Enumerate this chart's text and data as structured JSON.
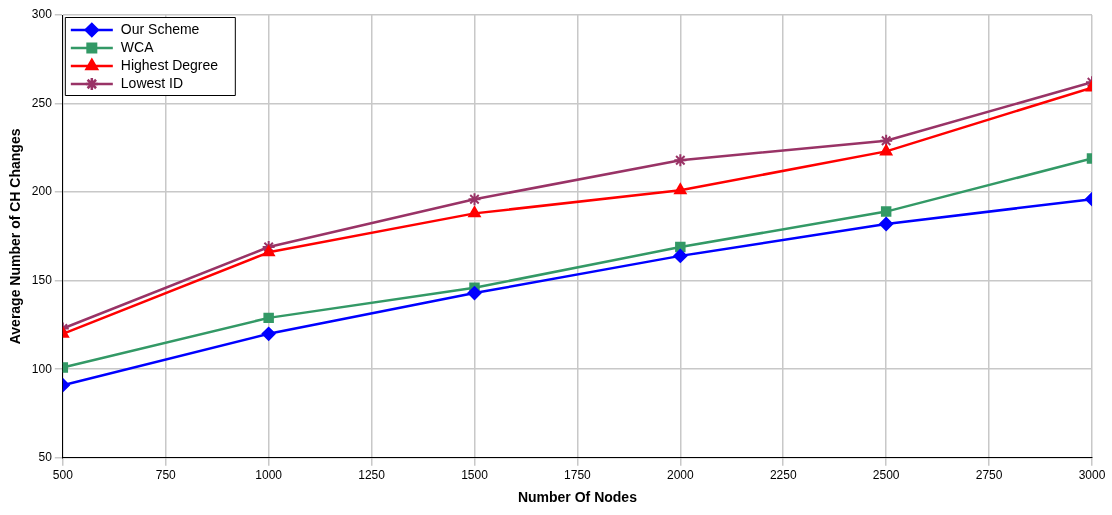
{
  "chart_data": {
    "type": "line",
    "xlabel": "Number Of Nodes",
    "ylabel": "Average Number of CH Changes",
    "x": [
      500,
      1000,
      1500,
      2000,
      2500,
      3000
    ],
    "xlim": [
      500,
      3000
    ],
    "xticks": [
      500,
      750,
      1000,
      1250,
      1500,
      1750,
      2000,
      2250,
      2500,
      2750,
      3000
    ],
    "ylim": [
      50,
      300
    ],
    "yticks": [
      50,
      100,
      150,
      200,
      250,
      300
    ],
    "grid": true,
    "legend": "top left",
    "line_style": "solid",
    "series": [
      {
        "name": "Our Scheme",
        "color": "#0000ff",
        "marker": "diamond",
        "values": [
          91,
          120,
          143,
          164,
          182,
          196
        ]
      },
      {
        "name": "WCA",
        "color": "#339966",
        "marker": "square",
        "values": [
          101,
          129,
          146,
          169,
          189,
          219
        ]
      },
      {
        "name": "Highest Degree",
        "color": "#ff0000",
        "marker": "triangle",
        "values": [
          120,
          166,
          188,
          201,
          223,
          259
        ]
      },
      {
        "name": "Lowest ID",
        "color": "#993366",
        "marker": "cross",
        "values": [
          123,
          169,
          196,
          218,
          229,
          262
        ]
      }
    ]
  }
}
